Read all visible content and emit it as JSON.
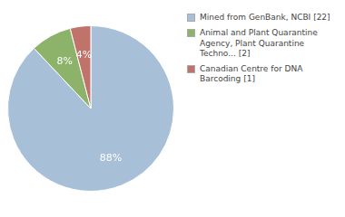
{
  "chart_data": {
    "type": "pie",
    "categories": [
      "Mined from GenBank, NCBI [22]",
      "Animal and Plant Quarantine\nAgency, Plant Quarantine\nTechno... [2]",
      "Canadian Centre for DNA\nBarcoding [1]"
    ],
    "values": [
      88,
      8,
      4
    ],
    "value_labels": [
      "88%",
      "8%",
      "4%"
    ],
    "colors": [
      "#a8bfd8",
      "#8db36a",
      "#c0736a"
    ],
    "data_labels": true,
    "legend": "right"
  }
}
